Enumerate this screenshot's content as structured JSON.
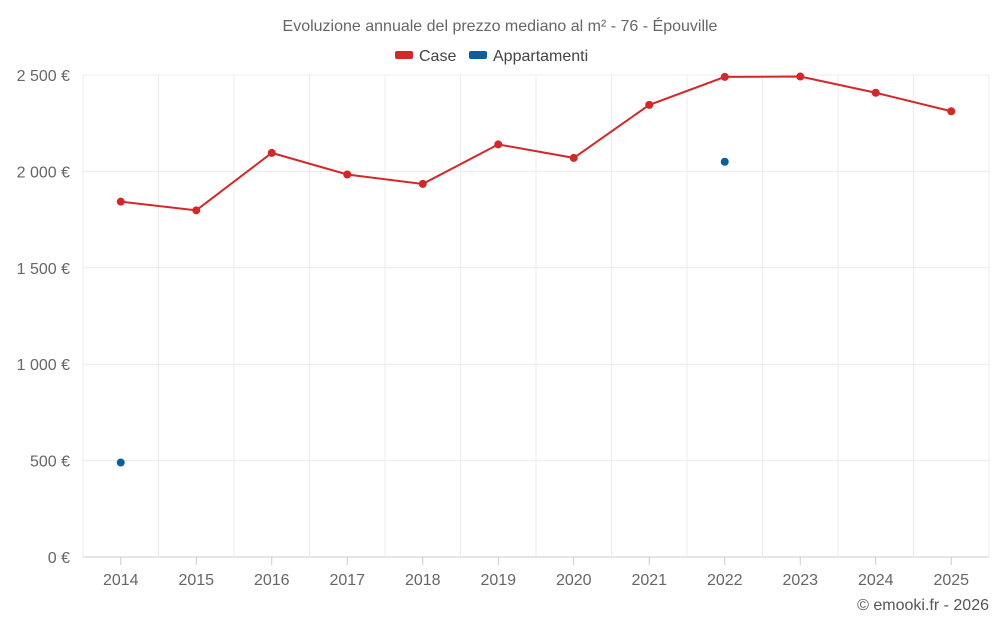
{
  "chart_data": {
    "type": "line",
    "title": "Evoluzione annuale del prezzo mediano al m² - 76 - Épouville",
    "categories": [
      "2014",
      "2015",
      "2016",
      "2017",
      "2018",
      "2019",
      "2020",
      "2021",
      "2022",
      "2023",
      "2024",
      "2025"
    ],
    "series": [
      {
        "name": "Case",
        "color": "#d62728",
        "values": [
          1843,
          1798,
          2096,
          1984,
          1935,
          2140,
          2070,
          2345,
          2490,
          2492,
          2408,
          2312
        ]
      },
      {
        "name": "Appartamenti",
        "color": "#0b5fa0",
        "values": [
          490,
          null,
          null,
          null,
          null,
          null,
          null,
          null,
          2050,
          null,
          null,
          null
        ]
      }
    ],
    "ylim": [
      0,
      2500
    ],
    "yticks": [
      0,
      500,
      1000,
      1500,
      2000,
      2500
    ],
    "ytick_labels": [
      "0 €",
      "500 €",
      "1 000 €",
      "1 500 €",
      "2 000 €",
      "2 500 €"
    ],
    "xlabel": "",
    "ylabel": "",
    "grid": true,
    "legend": "top-center"
  },
  "credit": "© emooki.fr - 2026"
}
